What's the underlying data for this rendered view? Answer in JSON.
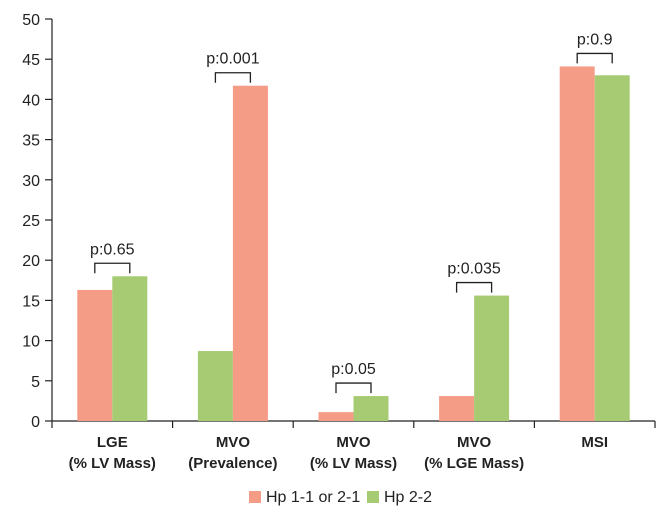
{
  "chart_data": {
    "type": "bar",
    "categories": [
      {
        "line1": "LGE",
        "line2": "(% LV Mass)"
      },
      {
        "line1": "MVO",
        "line2": "(Prevalence)"
      },
      {
        "line1": "MVO",
        "line2": "(% LV Mass)"
      },
      {
        "line1": "MVO",
        "line2": "(% LGE Mass)"
      },
      {
        "line1": "MSI",
        "line2": ""
      }
    ],
    "series": [
      {
        "name": "Hp 1-1 or 2-1",
        "color": "#f59c86",
        "values": [
          16.3,
          41.7,
          1.1,
          3.1,
          44.1
        ]
      },
      {
        "name": "Hp 2-2",
        "color": "#a6cb73",
        "values": [
          18.0,
          8.7,
          3.1,
          15.6,
          43.0
        ]
      }
    ],
    "series_order_per_category": [
      [
        "Hp 1-1 or 2-1",
        "Hp 2-2"
      ],
      [
        "Hp 2-2",
        "Hp 1-1 or 2-1"
      ],
      [
        "Hp 1-1 or 2-1",
        "Hp 2-2"
      ],
      [
        "Hp 1-1 or 2-1",
        "Hp 2-2"
      ],
      [
        "Hp 1-1 or 2-1",
        "Hp 2-2"
      ]
    ],
    "p_values": [
      "p:0.65",
      "p:0.001",
      "p:0.05",
      "p:0.035",
      "p:0.9"
    ],
    "yticks": [
      "0",
      "5",
      "10",
      "15",
      "20",
      "25",
      "30",
      "35",
      "40",
      "45",
      "50"
    ],
    "ylim": [
      0,
      50
    ],
    "grid": false,
    "legend_position": "bottom"
  }
}
